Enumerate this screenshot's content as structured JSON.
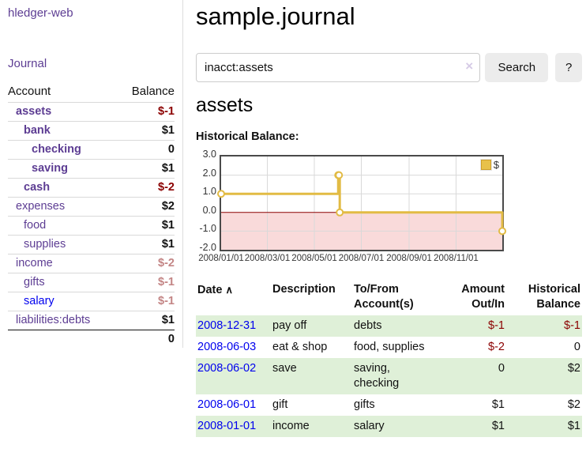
{
  "brand": "hledger-web",
  "nav": {
    "journal": "Journal"
  },
  "sidebar": {
    "account_header": "Account",
    "balance_header": "Balance",
    "accounts": [
      {
        "name": "assets",
        "balance": "$-1"
      },
      {
        "name": "bank",
        "balance": "$1"
      },
      {
        "name": "checking",
        "balance": "0"
      },
      {
        "name": "saving",
        "balance": "$1"
      },
      {
        "name": "cash",
        "balance": "$-2"
      },
      {
        "name": "expenses",
        "balance": "$2"
      },
      {
        "name": "food",
        "balance": "$1"
      },
      {
        "name": "supplies",
        "balance": "$1"
      },
      {
        "name": "income",
        "balance": "$-2"
      },
      {
        "name": "gifts",
        "balance": "$-1"
      },
      {
        "name": "salary",
        "balance": "$-1"
      },
      {
        "name": "liabilities:debts",
        "balance": "$1"
      }
    ],
    "total": "0"
  },
  "header": {
    "title": "sample.journal"
  },
  "search": {
    "value": "inacct:assets",
    "clear_icon": "×",
    "button_label": "Search",
    "help_label": "?"
  },
  "main": {
    "heading": "assets",
    "chart_label": "Historical Balance:"
  },
  "chart_data": {
    "type": "line",
    "step": true,
    "title": "Historical Balance",
    "series": [
      {
        "name": "$",
        "color": "#e2bb44",
        "points": [
          [
            "2008-01-01",
            1
          ],
          [
            "2008-06-01",
            2
          ],
          [
            "2008-06-02",
            2
          ],
          [
            "2008-06-03",
            0
          ],
          [
            "2008-12-31",
            -1
          ]
        ]
      }
    ],
    "x_range": [
      "2008-01-01",
      "2008-12-31"
    ],
    "ylim": [
      -2,
      3
    ],
    "y_ticks": [
      3,
      2,
      1,
      0,
      -1,
      -2
    ],
    "y_tick_labels": [
      "3.0",
      "2.0",
      "1.0",
      "0.0",
      "-1.0",
      "-2.0"
    ],
    "x_ticks": [
      "2008-01-01",
      "2008-03-01",
      "2008-05-01",
      "2008-07-01",
      "2008-09-01",
      "2008-11-01"
    ],
    "x_tick_labels": [
      "2008/01/01",
      "2008/03/01",
      "2008/05/01",
      "2008/07/01",
      "2008/09/01",
      "2008/11/01"
    ],
    "grid": true,
    "grid_color": "#d9d9d9",
    "negative_fill": "#f9dada",
    "zero_line_color": "#8b0000",
    "legend": {
      "label": "$",
      "position": "top-right"
    }
  },
  "table": {
    "headers": {
      "date": "Date",
      "sort_indicator": "∧",
      "description": "Description",
      "accounts": "To/From\nAccount(s)",
      "amount": "Amount\nOut/In",
      "balance": "Historical\nBalance"
    },
    "rows": [
      {
        "date": "2008-12-31",
        "description": "pay off",
        "accounts": "debts",
        "amount": "$-1",
        "balance": "$-1"
      },
      {
        "date": "2008-06-03",
        "description": "eat & shop",
        "accounts": "food, supplies",
        "amount": "$-2",
        "balance": "0"
      },
      {
        "date": "2008-06-02",
        "description": "save",
        "accounts": "saving,\nchecking",
        "amount": "0",
        "balance": "$2"
      },
      {
        "date": "2008-06-01",
        "description": "gift",
        "accounts": "gifts",
        "amount": "$1",
        "balance": "$2"
      },
      {
        "date": "2008-01-01",
        "description": "income",
        "accounts": "salary",
        "amount": "$1",
        "balance": "$1"
      }
    ]
  },
  "colors": {
    "accent_purple": "#5d3d93",
    "link_blue": "#0000ee",
    "negative": "#8b0000",
    "negative_faded": "#c38585",
    "row_green": "#dff0d8",
    "series_gold": "#e2bb44"
  }
}
